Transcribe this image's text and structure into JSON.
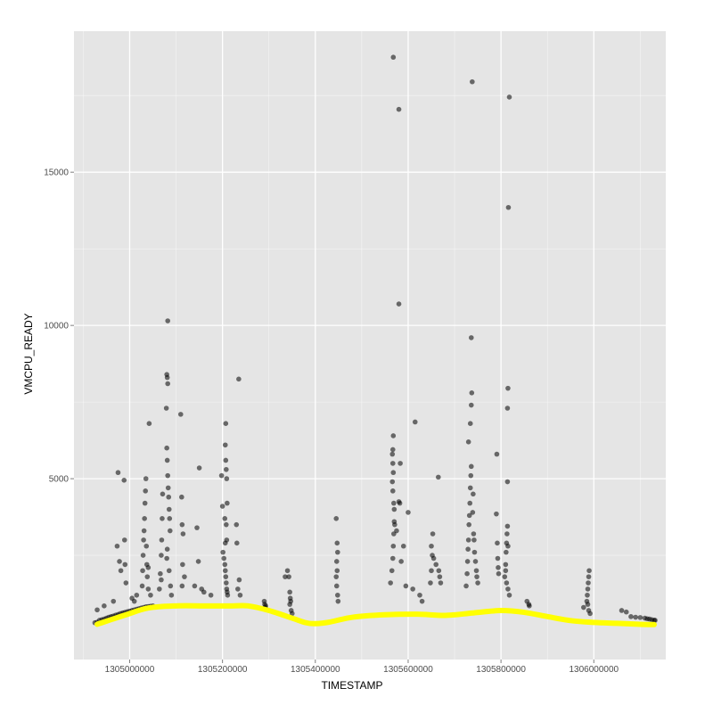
{
  "chart_data": {
    "type": "scatter",
    "title": "",
    "xlabel": "TIMESTAMP",
    "ylabel": "VMCPU_READY",
    "xlim": [
      1304880000,
      1306155000
    ],
    "ylim": [
      -900,
      19600
    ],
    "x_ticks": [
      {
        "value": 1305000000,
        "label": "1305000000"
      },
      {
        "value": 1305200000,
        "label": "1305200000"
      },
      {
        "value": 1305400000,
        "label": "1305400000"
      },
      {
        "value": 1305600000,
        "label": "1305600000"
      },
      {
        "value": 1305800000,
        "label": "1305800000"
      },
      {
        "value": 1306000000,
        "label": "1306000000"
      }
    ],
    "y_ticks": [
      {
        "value": 5000,
        "label": "5000"
      },
      {
        "value": 10000,
        "label": "10000"
      },
      {
        "value": 15000,
        "label": "15000"
      }
    ],
    "grid": true,
    "panel_background": "#e5e5e5",
    "grid_color": "#ffffff",
    "point_color": "#000000",
    "point_opacity": 0.55,
    "smooth_color": "#ffff00",
    "series": [
      {
        "type": "scatter",
        "points": [
          [
            1304925000,
            300
          ],
          [
            1304930000,
            320
          ],
          [
            1304935000,
            380
          ],
          [
            1304940000,
            400
          ],
          [
            1304945000,
            420
          ],
          [
            1304950000,
            450
          ],
          [
            1304955000,
            480
          ],
          [
            1304960000,
            500
          ],
          [
            1304965000,
            520
          ],
          [
            1304970000,
            550
          ],
          [
            1304975000,
            570
          ],
          [
            1304980000,
            600
          ],
          [
            1304985000,
            620
          ],
          [
            1304990000,
            640
          ],
          [
            1304995000,
            660
          ],
          [
            1305000000,
            680
          ],
          [
            1305005000,
            700
          ],
          [
            1305010000,
            720
          ],
          [
            1305015000,
            740
          ],
          [
            1305020000,
            760
          ],
          [
            1305025000,
            780
          ],
          [
            1305030000,
            800
          ],
          [
            1305035000,
            820
          ],
          [
            1305040000,
            830
          ],
          [
            1305045000,
            840
          ],
          [
            1305050000,
            850
          ],
          [
            1304930000,
            720
          ],
          [
            1304945000,
            850
          ],
          [
            1304965000,
            1000
          ],
          [
            1304973000,
            2800
          ],
          [
            1304975000,
            5200
          ],
          [
            1304978000,
            2300
          ],
          [
            1304981000,
            2000
          ],
          [
            1304988000,
            4950
          ],
          [
            1304989000,
            3000
          ],
          [
            1304990000,
            2200
          ],
          [
            1304992000,
            1600
          ],
          [
            1305005000,
            1100
          ],
          [
            1305010000,
            1000
          ],
          [
            1305015000,
            1200
          ],
          [
            1305027000,
            1500
          ],
          [
            1305028000,
            2000
          ],
          [
            1305029000,
            2500
          ],
          [
            1305030000,
            3000
          ],
          [
            1305031000,
            3300
          ],
          [
            1305032000,
            3700
          ],
          [
            1305033000,
            4200
          ],
          [
            1305034000,
            4600
          ],
          [
            1305035000,
            5000
          ],
          [
            1305036000,
            2800
          ],
          [
            1305037000,
            2200
          ],
          [
            1305038000,
            1800
          ],
          [
            1305040000,
            2100
          ],
          [
            1305042000,
            6800
          ],
          [
            1305040000,
            1400
          ],
          [
            1305045000,
            1200
          ],
          [
            1305064000,
            1400
          ],
          [
            1305066000,
            1900
          ],
          [
            1305068000,
            2500
          ],
          [
            1305069000,
            3000
          ],
          [
            1305070000,
            3700
          ],
          [
            1305071000,
            4500
          ],
          [
            1305068000,
            1700
          ],
          [
            1305080000,
            8400
          ],
          [
            1305081000,
            8300
          ],
          [
            1305082000,
            8100
          ],
          [
            1305079000,
            7300
          ],
          [
            1305080000,
            6000
          ],
          [
            1305081000,
            5600
          ],
          [
            1305082000,
            5100
          ],
          [
            1305083000,
            4700
          ],
          [
            1305084000,
            4400
          ],
          [
            1305085000,
            4000
          ],
          [
            1305086000,
            3700
          ],
          [
            1305087000,
            3300
          ],
          [
            1305082000,
            10150
          ],
          [
            1305081000,
            2700
          ],
          [
            1305080000,
            2400
          ],
          [
            1305085000,
            2000
          ],
          [
            1305088000,
            1500
          ],
          [
            1305090000,
            1200
          ],
          [
            1305110000,
            7100
          ],
          [
            1305112000,
            4400
          ],
          [
            1305113000,
            3500
          ],
          [
            1305115000,
            3200
          ],
          [
            1305114000,
            2200
          ],
          [
            1305118000,
            1800
          ],
          [
            1305113000,
            1500
          ],
          [
            1305150000,
            5350
          ],
          [
            1305145000,
            3400
          ],
          [
            1305148000,
            2300
          ],
          [
            1305140000,
            1500
          ],
          [
            1305155000,
            1400
          ],
          [
            1305160000,
            1300
          ],
          [
            1305175000,
            1200
          ],
          [
            1305198000,
            5100
          ],
          [
            1305200000,
            4100
          ],
          [
            1305205000,
            3700
          ],
          [
            1305206000,
            2900
          ],
          [
            1305207000,
            6800
          ],
          [
            1305206000,
            6100
          ],
          [
            1305207000,
            5600
          ],
          [
            1305208000,
            5300
          ],
          [
            1305209000,
            5000
          ],
          [
            1305210000,
            4200
          ],
          [
            1305208000,
            3500
          ],
          [
            1305209000,
            3000
          ],
          [
            1305201000,
            2600
          ],
          [
            1305203000,
            2400
          ],
          [
            1305205000,
            2200
          ],
          [
            1305206000,
            2000
          ],
          [
            1305207000,
            1800
          ],
          [
            1305208000,
            1600
          ],
          [
            1305209000,
            1400
          ],
          [
            1305210000,
            1300
          ],
          [
            1305211000,
            1200
          ],
          [
            1305235000,
            8250
          ],
          [
            1305230000,
            3500
          ],
          [
            1305231000,
            2900
          ],
          [
            1305236000,
            1700
          ],
          [
            1305233000,
            1400
          ],
          [
            1305238000,
            1200
          ],
          [
            1305290000,
            1000
          ],
          [
            1305291000,
            900
          ],
          [
            1305292000,
            800
          ],
          [
            1305293000,
            850
          ],
          [
            1305335000,
            1800
          ],
          [
            1305340000,
            2000
          ],
          [
            1305343000,
            1800
          ],
          [
            1305345000,
            1300
          ],
          [
            1305346000,
            1100
          ],
          [
            1305347000,
            1000
          ],
          [
            1305345000,
            900
          ],
          [
            1305348000,
            700
          ],
          [
            1305350000,
            600
          ],
          [
            1305445000,
            3700
          ],
          [
            1305447000,
            2900
          ],
          [
            1305448000,
            2600
          ],
          [
            1305446000,
            2300
          ],
          [
            1305447000,
            2000
          ],
          [
            1305445000,
            1800
          ],
          [
            1305446000,
            1500
          ],
          [
            1305448000,
            1200
          ],
          [
            1305449000,
            1000
          ],
          [
            1305562000,
            1600
          ],
          [
            1305565000,
            2000
          ],
          [
            1305567000,
            2400
          ],
          [
            1305568000,
            2800
          ],
          [
            1305569000,
            3200
          ],
          [
            1305570000,
            3600
          ],
          [
            1305566000,
            5800
          ],
          [
            1305567000,
            5950
          ],
          [
            1305568000,
            6400
          ],
          [
            1305567000,
            5500
          ],
          [
            1305568000,
            5200
          ],
          [
            1305566000,
            4900
          ],
          [
            1305567000,
            4600
          ],
          [
            1305569000,
            4200
          ],
          [
            1305570000,
            4000
          ],
          [
            1305571000,
            3500
          ],
          [
            1305568000,
            18750
          ],
          [
            1305580000,
            17050
          ],
          [
            1305580000,
            10700
          ],
          [
            1305583000,
            5500
          ],
          [
            1305580000,
            4250
          ],
          [
            1305582000,
            4200
          ],
          [
            1305575000,
            3300
          ],
          [
            1305585000,
            2300
          ],
          [
            1305590000,
            2800
          ],
          [
            1305595000,
            1500
          ],
          [
            1305600000,
            3900
          ],
          [
            1305610000,
            1400
          ],
          [
            1305615000,
            6850
          ],
          [
            1305625000,
            1200
          ],
          [
            1305630000,
            1000
          ],
          [
            1305648000,
            1600
          ],
          [
            1305650000,
            2000
          ],
          [
            1305652000,
            2500
          ],
          [
            1305653000,
            3200
          ],
          [
            1305650000,
            2800
          ],
          [
            1305655000,
            2400
          ],
          [
            1305660000,
            2200
          ],
          [
            1305665000,
            5050
          ],
          [
            1305666000,
            2000
          ],
          [
            1305668000,
            1800
          ],
          [
            1305670000,
            1600
          ],
          [
            1305725000,
            1500
          ],
          [
            1305727000,
            1900
          ],
          [
            1305728000,
            2300
          ],
          [
            1305729000,
            2700
          ],
          [
            1305730000,
            3000
          ],
          [
            1305731000,
            3500
          ],
          [
            1305732000,
            3800
          ],
          [
            1305733000,
            4200
          ],
          [
            1305734000,
            4700
          ],
          [
            1305735000,
            5100
          ],
          [
            1305736000,
            5400
          ],
          [
            1305730000,
            6200
          ],
          [
            1305734000,
            6800
          ],
          [
            1305736000,
            7400
          ],
          [
            1305737000,
            7800
          ],
          [
            1305738000,
            17950
          ],
          [
            1305736000,
            9600
          ],
          [
            1305739000,
            3900
          ],
          [
            1305740000,
            4500
          ],
          [
            1305741000,
            3200
          ],
          [
            1305742000,
            3000
          ],
          [
            1305743000,
            2600
          ],
          [
            1305745000,
            2300
          ],
          [
            1305747000,
            2000
          ],
          [
            1305748000,
            1800
          ],
          [
            1305750000,
            1600
          ],
          [
            1305790000,
            3850
          ],
          [
            1305792000,
            2900
          ],
          [
            1305793000,
            2400
          ],
          [
            1305794000,
            2100
          ],
          [
            1305791000,
            5800
          ],
          [
            1305795000,
            1900
          ],
          [
            1305808000,
            1800
          ],
          [
            1305810000,
            2200
          ],
          [
            1305811000,
            2600
          ],
          [
            1305812000,
            2900
          ],
          [
            1305813000,
            3200
          ],
          [
            1305814000,
            3450
          ],
          [
            1305815000,
            2800
          ],
          [
            1305814000,
            4900
          ],
          [
            1305814000,
            7300
          ],
          [
            1305815000,
            7950
          ],
          [
            1305816000,
            13850
          ],
          [
            1305818000,
            17450
          ],
          [
            1305810000,
            2000
          ],
          [
            1305812000,
            1600
          ],
          [
            1305815000,
            1400
          ],
          [
            1305818000,
            1200
          ],
          [
            1305856000,
            1000
          ],
          [
            1305860000,
            900
          ],
          [
            1305861000,
            850
          ],
          [
            1305978000,
            800
          ],
          [
            1305985000,
            1000
          ],
          [
            1305986000,
            1200
          ],
          [
            1305987000,
            1400
          ],
          [
            1305988000,
            1600
          ],
          [
            1305989000,
            1800
          ],
          [
            1305990000,
            2000
          ],
          [
            1305987000,
            900
          ],
          [
            1305989000,
            700
          ],
          [
            1305992000,
            600
          ],
          [
            1306060000,
            700
          ],
          [
            1306070000,
            650
          ],
          [
            1306080000,
            500
          ],
          [
            1306090000,
            480
          ],
          [
            1306100000,
            470
          ],
          [
            1306110000,
            450
          ],
          [
            1306115000,
            430
          ],
          [
            1306120000,
            420
          ],
          [
            1306125000,
            400
          ],
          [
            1306130000,
            380
          ],
          [
            1306132000,
            380
          ]
        ]
      },
      {
        "type": "smooth",
        "points": [
          [
            1304930000,
            250
          ],
          [
            1304990000,
            550
          ],
          [
            1305040000,
            780
          ],
          [
            1305100000,
            850
          ],
          [
            1305160000,
            850
          ],
          [
            1305220000,
            850
          ],
          [
            1305255000,
            850
          ],
          [
            1305300000,
            700
          ],
          [
            1305350000,
            450
          ],
          [
            1305380000,
            300
          ],
          [
            1305400000,
            270
          ],
          [
            1305430000,
            320
          ],
          [
            1305480000,
            480
          ],
          [
            1305550000,
            560
          ],
          [
            1305620000,
            580
          ],
          [
            1305680000,
            540
          ],
          [
            1305740000,
            620
          ],
          [
            1305800000,
            700
          ],
          [
            1305850000,
            640
          ],
          [
            1305900000,
            500
          ],
          [
            1305950000,
            370
          ],
          [
            1306000000,
            310
          ],
          [
            1306050000,
            280
          ],
          [
            1306100000,
            250
          ],
          [
            1306130000,
            240
          ]
        ]
      }
    ]
  }
}
